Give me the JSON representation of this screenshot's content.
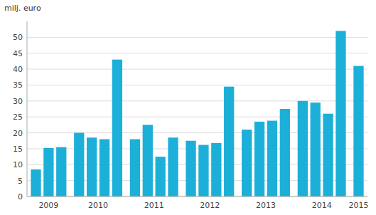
{
  "chart_data": {
    "type": "bar",
    "y_label": "milj. euro",
    "values": [
      8.5,
      15.2,
      15.5,
      20.0,
      18.5,
      18.0,
      43.0,
      18.0,
      22.5,
      12.5,
      18.5,
      17.5,
      16.2,
      16.8,
      34.5,
      21.0,
      23.5,
      23.8,
      27.5,
      30.0,
      29.5,
      26.0,
      52.0,
      41.0
    ],
    "groups": [
      {
        "label": "2009",
        "count": 3
      },
      {
        "label": "2010",
        "count": 4
      },
      {
        "label": "2011",
        "count": 4
      },
      {
        "label": "2012",
        "count": 4
      },
      {
        "label": "2013",
        "count": 4
      },
      {
        "label": "2014",
        "count": 4
      },
      {
        "label": "2015",
        "count": 1
      }
    ],
    "color": "#1cb0d8",
    "ylim": [
      0,
      55
    ],
    "yticks": [
      0,
      5,
      10,
      15,
      20,
      25,
      30,
      35,
      40,
      45,
      50
    ],
    "grid": true
  }
}
